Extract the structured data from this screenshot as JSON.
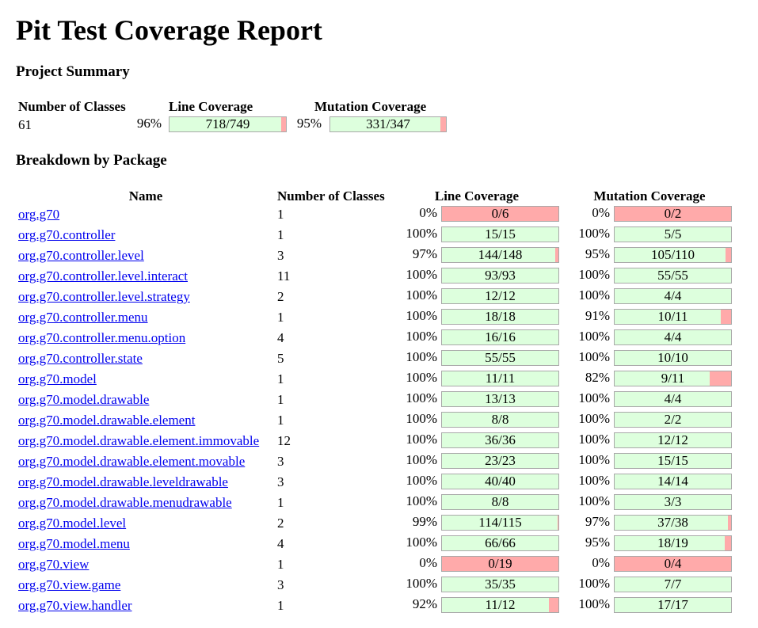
{
  "page_title": "Pit Test Coverage Report",
  "project_summary": {
    "heading": "Project Summary",
    "headers": {
      "classes": "Number of Classes",
      "line": "Line Coverage",
      "mutation": "Mutation Coverage"
    },
    "classes": "61",
    "line_pct": "96%",
    "line_ratio": "718/749",
    "line_fraction": 0.959,
    "mutation_pct": "95%",
    "mutation_ratio": "331/347",
    "mutation_fraction": 0.954
  },
  "breakdown": {
    "heading": "Breakdown by Package",
    "headers": {
      "name": "Name",
      "classes": "Number of Classes",
      "line": "Line Coverage",
      "mutation": "Mutation Coverage"
    },
    "packages": [
      {
        "name": "org.g70",
        "classes": "1",
        "line_pct": "0%",
        "line": "0/6",
        "line_frac": 0,
        "mut_pct": "0%",
        "mut": "0/2",
        "mut_frac": 0
      },
      {
        "name": "org.g70.controller",
        "classes": "1",
        "line_pct": "100%",
        "line": "15/15",
        "line_frac": 1,
        "mut_pct": "100%",
        "mut": "5/5",
        "mut_frac": 1
      },
      {
        "name": "org.g70.controller.level",
        "classes": "3",
        "line_pct": "97%",
        "line": "144/148",
        "line_frac": 0.973,
        "mut_pct": "95%",
        "mut": "105/110",
        "mut_frac": 0.955
      },
      {
        "name": "org.g70.controller.level.interact",
        "classes": "11",
        "line_pct": "100%",
        "line": "93/93",
        "line_frac": 1,
        "mut_pct": "100%",
        "mut": "55/55",
        "mut_frac": 1
      },
      {
        "name": "org.g70.controller.level.strategy",
        "classes": "2",
        "line_pct": "100%",
        "line": "12/12",
        "line_frac": 1,
        "mut_pct": "100%",
        "mut": "4/4",
        "mut_frac": 1
      },
      {
        "name": "org.g70.controller.menu",
        "classes": "1",
        "line_pct": "100%",
        "line": "18/18",
        "line_frac": 1,
        "mut_pct": "91%",
        "mut": "10/11",
        "mut_frac": 0.909
      },
      {
        "name": "org.g70.controller.menu.option",
        "classes": "4",
        "line_pct": "100%",
        "line": "16/16",
        "line_frac": 1,
        "mut_pct": "100%",
        "mut": "4/4",
        "mut_frac": 1
      },
      {
        "name": "org.g70.controller.state",
        "classes": "5",
        "line_pct": "100%",
        "line": "55/55",
        "line_frac": 1,
        "mut_pct": "100%",
        "mut": "10/10",
        "mut_frac": 1
      },
      {
        "name": "org.g70.model",
        "classes": "1",
        "line_pct": "100%",
        "line": "11/11",
        "line_frac": 1,
        "mut_pct": "82%",
        "mut": "9/11",
        "mut_frac": 0.818
      },
      {
        "name": "org.g70.model.drawable",
        "classes": "1",
        "line_pct": "100%",
        "line": "13/13",
        "line_frac": 1,
        "mut_pct": "100%",
        "mut": "4/4",
        "mut_frac": 1
      },
      {
        "name": "org.g70.model.drawable.element",
        "classes": "1",
        "line_pct": "100%",
        "line": "8/8",
        "line_frac": 1,
        "mut_pct": "100%",
        "mut": "2/2",
        "mut_frac": 1
      },
      {
        "name": "org.g70.model.drawable.element.immovable",
        "classes": "12",
        "line_pct": "100%",
        "line": "36/36",
        "line_frac": 1,
        "mut_pct": "100%",
        "mut": "12/12",
        "mut_frac": 1
      },
      {
        "name": "org.g70.model.drawable.element.movable",
        "classes": "3",
        "line_pct": "100%",
        "line": "23/23",
        "line_frac": 1,
        "mut_pct": "100%",
        "mut": "15/15",
        "mut_frac": 1
      },
      {
        "name": "org.g70.model.drawable.leveldrawable",
        "classes": "3",
        "line_pct": "100%",
        "line": "40/40",
        "line_frac": 1,
        "mut_pct": "100%",
        "mut": "14/14",
        "mut_frac": 1
      },
      {
        "name": "org.g70.model.drawable.menudrawable",
        "classes": "1",
        "line_pct": "100%",
        "line": "8/8",
        "line_frac": 1,
        "mut_pct": "100%",
        "mut": "3/3",
        "mut_frac": 1
      },
      {
        "name": "org.g70.model.level",
        "classes": "2",
        "line_pct": "99%",
        "line": "114/115",
        "line_frac": 0.991,
        "mut_pct": "97%",
        "mut": "37/38",
        "mut_frac": 0.974
      },
      {
        "name": "org.g70.model.menu",
        "classes": "4",
        "line_pct": "100%",
        "line": "66/66",
        "line_frac": 1,
        "mut_pct": "95%",
        "mut": "18/19",
        "mut_frac": 0.947
      },
      {
        "name": "org.g70.view",
        "classes": "1",
        "line_pct": "0%",
        "line": "0/19",
        "line_frac": 0,
        "mut_pct": "0%",
        "mut": "0/4",
        "mut_frac": 0
      },
      {
        "name": "org.g70.view.game",
        "classes": "3",
        "line_pct": "100%",
        "line": "35/35",
        "line_frac": 1,
        "mut_pct": "100%",
        "mut": "7/7",
        "mut_frac": 1
      },
      {
        "name": "org.g70.view.handler",
        "classes": "1",
        "line_pct": "92%",
        "line": "11/12",
        "line_frac": 0.917,
        "mut_pct": "100%",
        "mut": "17/17",
        "mut_frac": 1
      }
    ]
  },
  "colors": {
    "covered": "#ddffdd",
    "uncovered": "#ffaaaa",
    "link": "#0000ee"
  }
}
